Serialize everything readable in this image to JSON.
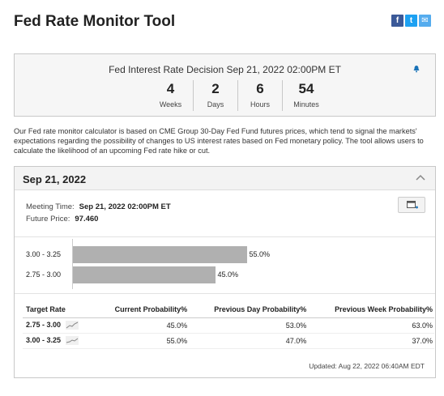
{
  "page": {
    "title": "Fed Rate Monitor Tool"
  },
  "share": {
    "facebook": "f",
    "twitter": "t",
    "email": "✉"
  },
  "countdown": {
    "title": "Fed Interest Rate Decision Sep 21, 2022 02:00PM ET",
    "units": [
      {
        "value": "4",
        "label": "Weeks"
      },
      {
        "value": "2",
        "label": "Days"
      },
      {
        "value": "6",
        "label": "Hours"
      },
      {
        "value": "54",
        "label": "Minutes"
      }
    ]
  },
  "description": "Our Fed rate monitor calculator is based on CME Group 30-Day Fed Fund futures prices, which tend to signal the markets' expectations regarding the possibility of changes to US interest rates based on Fed monetary policy. The tool allows users to calculate the likelihood of an upcoming Fed rate hike or cut.",
  "meeting": {
    "date": "Sep 21, 2022",
    "meeting_time_label": "Meeting Time:",
    "meeting_time": "Sep 21, 2022 02:00PM ET",
    "future_price_label": "Future Price:",
    "future_price": "97.460"
  },
  "chart_data": {
    "type": "bar",
    "orientation": "horizontal",
    "categories": [
      "3.00 - 3.25",
      "2.75 - 3.00"
    ],
    "values": [
      55.0,
      45.0
    ],
    "value_labels": [
      "55.0%",
      "45.0%"
    ],
    "xlim": [
      0,
      100
    ],
    "title": "",
    "xlabel": "",
    "ylabel": ""
  },
  "table": {
    "headers": [
      "Target Rate",
      "Current Probability%",
      "Previous Day Probability%",
      "Previous Week Probability%"
    ],
    "rows": [
      {
        "target": "2.75 - 3.00",
        "current": "45.0%",
        "prev_day": "53.0%",
        "prev_week": "63.0%"
      },
      {
        "target": "3.00 - 3.25",
        "current": "55.0%",
        "prev_day": "47.0%",
        "prev_week": "37.0%"
      }
    ]
  },
  "updated": "Updated: Aug 22, 2022 06:40AM EDT",
  "colors": {
    "bar": "#b0b0b0",
    "facebook": "#3b5998",
    "twitter": "#1da1f2",
    "email": "#55acee",
    "accent": "#1a73b8"
  }
}
